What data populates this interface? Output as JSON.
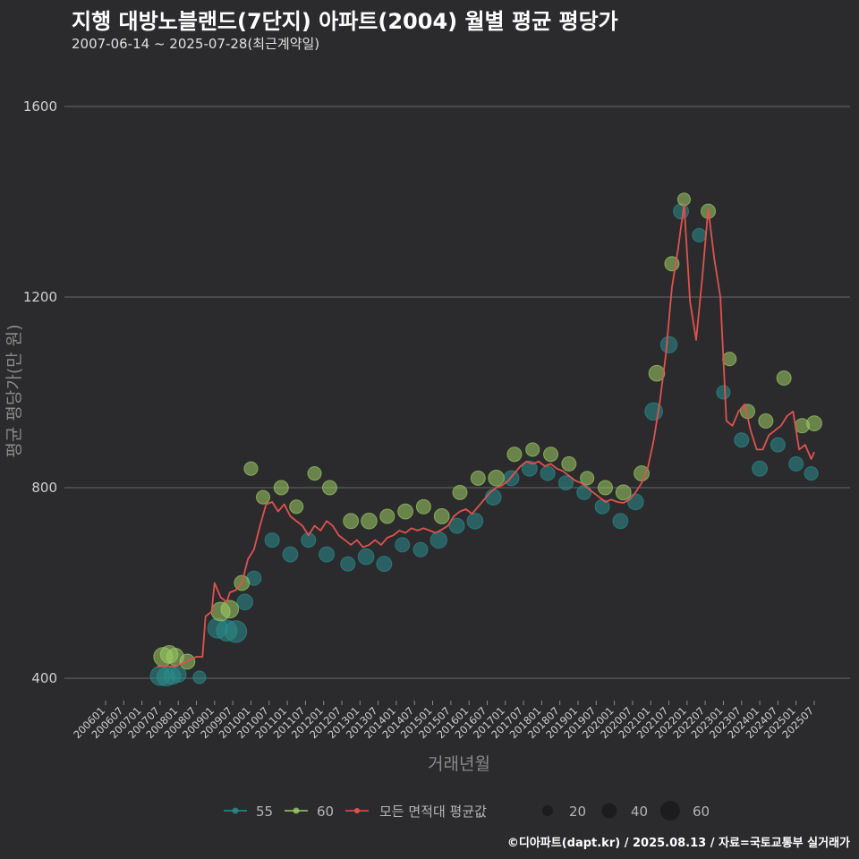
{
  "page": {
    "title": "지행 대방노블랜드(7단지) 아파트(2004) 월별 평균 평당가",
    "subtitle": "2007-06-14 ~ 2025-07-28(최근계약일)",
    "footer": "©디아파트(dapt.kr) / 2025.08.13 / 자료=국토교통부 실거래가"
  },
  "colors": {
    "background": "#2b2b2d",
    "grid": "#6a6a6a",
    "series_55": "#2a8c8c",
    "series_60": "#9ccc65",
    "avg_line": "#e0524f"
  },
  "chart_data": {
    "type": "line",
    "xlabel": "거래년월",
    "ylabel": "평균 평당가(만 원)",
    "ylim": [
      370,
      1670
    ],
    "y_ticks": [
      400,
      800,
      1200,
      1600
    ],
    "x_ticks": [
      "200601",
      "200607",
      "200701",
      "200707",
      "200801",
      "200807",
      "200901",
      "200907",
      "201001",
      "201007",
      "201101",
      "201107",
      "201201",
      "201207",
      "201301",
      "201307",
      "201401",
      "201407",
      "201501",
      "201507",
      "201601",
      "201607",
      "201701",
      "201707",
      "201801",
      "201807",
      "201901",
      "201907",
      "202001",
      "202007",
      "202101",
      "202107",
      "202201",
      "202207",
      "202301",
      "202307",
      "202401",
      "202407",
      "202501",
      "202507"
    ],
    "x_start": "2006-01",
    "x_end": "2025-07",
    "legend": {
      "series_label_55": "55",
      "series_label_60": "60",
      "avg_label": "모든 면적대 평균값",
      "size_labels": [
        "20",
        "40",
        "60"
      ]
    },
    "avg_line": [
      [
        "2007-06",
        425
      ],
      [
        "2007-09",
        425
      ],
      [
        "2007-12",
        425
      ],
      [
        "2008-02",
        430
      ],
      [
        "2008-05",
        440
      ],
      [
        "2008-07",
        445
      ],
      [
        "2008-09",
        445
      ],
      [
        "2008-10",
        530
      ],
      [
        "2008-12",
        540
      ],
      [
        "2009-01",
        600
      ],
      [
        "2009-03",
        570
      ],
      [
        "2009-05",
        560
      ],
      [
        "2009-06",
        580
      ],
      [
        "2009-08",
        585
      ],
      [
        "2009-10",
        600
      ],
      [
        "2009-12",
        650
      ],
      [
        "2010-02",
        670
      ],
      [
        "2010-04",
        720
      ],
      [
        "2010-06",
        765
      ],
      [
        "2010-08",
        770
      ],
      [
        "2010-10",
        750
      ],
      [
        "2010-12",
        765
      ],
      [
        "2011-02",
        740
      ],
      [
        "2011-04",
        730
      ],
      [
        "2011-06",
        720
      ],
      [
        "2011-08",
        700
      ],
      [
        "2011-10",
        720
      ],
      [
        "2011-12",
        710
      ],
      [
        "2012-02",
        730
      ],
      [
        "2012-04",
        720
      ],
      [
        "2012-06",
        700
      ],
      [
        "2012-08",
        690
      ],
      [
        "2012-10",
        680
      ],
      [
        "2012-12",
        690
      ],
      [
        "2013-02",
        675
      ],
      [
        "2013-04",
        680
      ],
      [
        "2013-06",
        690
      ],
      [
        "2013-08",
        680
      ],
      [
        "2013-10",
        695
      ],
      [
        "2013-12",
        700
      ],
      [
        "2014-02",
        710
      ],
      [
        "2014-04",
        705
      ],
      [
        "2014-06",
        715
      ],
      [
        "2014-08",
        710
      ],
      [
        "2014-10",
        715
      ],
      [
        "2014-12",
        710
      ],
      [
        "2015-02",
        705
      ],
      [
        "2015-04",
        712
      ],
      [
        "2015-06",
        720
      ],
      [
        "2015-08",
        740
      ],
      [
        "2015-10",
        750
      ],
      [
        "2015-12",
        755
      ],
      [
        "2016-02",
        745
      ],
      [
        "2016-04",
        760
      ],
      [
        "2016-06",
        775
      ],
      [
        "2016-08",
        790
      ],
      [
        "2016-10",
        800
      ],
      [
        "2016-12",
        805
      ],
      [
        "2017-02",
        815
      ],
      [
        "2017-04",
        830
      ],
      [
        "2017-06",
        845
      ],
      [
        "2017-08",
        855
      ],
      [
        "2017-10",
        850
      ],
      [
        "2017-12",
        855
      ],
      [
        "2018-02",
        845
      ],
      [
        "2018-04",
        850
      ],
      [
        "2018-06",
        840
      ],
      [
        "2018-08",
        835
      ],
      [
        "2018-10",
        825
      ],
      [
        "2018-12",
        815
      ],
      [
        "2019-02",
        810
      ],
      [
        "2019-04",
        800
      ],
      [
        "2019-06",
        790
      ],
      [
        "2019-08",
        780
      ],
      [
        "2019-10",
        770
      ],
      [
        "2019-12",
        775
      ],
      [
        "2020-02",
        770
      ],
      [
        "2020-04",
        768
      ],
      [
        "2020-06",
        775
      ],
      [
        "2020-08",
        790
      ],
      [
        "2020-10",
        810
      ],
      [
        "2020-12",
        840
      ],
      [
        "2021-02",
        900
      ],
      [
        "2021-04",
        980
      ],
      [
        "2021-06",
        1080
      ],
      [
        "2021-08",
        1220
      ],
      [
        "2021-10",
        1300
      ],
      [
        "2021-12",
        1395
      ],
      [
        "2022-02",
        1190
      ],
      [
        "2022-04",
        1110
      ],
      [
        "2022-06",
        1240
      ],
      [
        "2022-08",
        1385
      ],
      [
        "2022-10",
        1280
      ],
      [
        "2022-12",
        1200
      ],
      [
        "2023-02",
        940
      ],
      [
        "2023-04",
        930
      ],
      [
        "2023-06",
        960
      ],
      [
        "2023-08",
        975
      ],
      [
        "2023-10",
        920
      ],
      [
        "2023-12",
        880
      ],
      [
        "2024-02",
        880
      ],
      [
        "2024-04",
        910
      ],
      [
        "2024-06",
        920
      ],
      [
        "2024-08",
        930
      ],
      [
        "2024-10",
        950
      ],
      [
        "2024-12",
        960
      ],
      [
        "2025-02",
        880
      ],
      [
        "2025-04",
        890
      ],
      [
        "2025-06",
        860
      ],
      [
        "2025-07",
        875
      ]
    ],
    "series": [
      {
        "name": "55",
        "points": [
          [
            "2007-07",
            405,
            30
          ],
          [
            "2007-09",
            403,
            26
          ],
          [
            "2007-11",
            405,
            22
          ],
          [
            "2008-01",
            408,
            18
          ],
          [
            "2008-08",
            402,
            10
          ],
          [
            "2009-02",
            505,
            32
          ],
          [
            "2009-05",
            500,
            36
          ],
          [
            "2009-08",
            498,
            40
          ],
          [
            "2009-11",
            560,
            18
          ],
          [
            "2010-02",
            610,
            14
          ],
          [
            "2010-08",
            690,
            14
          ],
          [
            "2011-02",
            660,
            16
          ],
          [
            "2011-08",
            690,
            14
          ],
          [
            "2012-02",
            660,
            16
          ],
          [
            "2012-09",
            640,
            14
          ],
          [
            "2013-03",
            655,
            18
          ],
          [
            "2013-09",
            640,
            16
          ],
          [
            "2014-03",
            680,
            14
          ],
          [
            "2014-09",
            670,
            14
          ],
          [
            "2015-03",
            690,
            20
          ],
          [
            "2015-09",
            720,
            16
          ],
          [
            "2016-03",
            730,
            18
          ],
          [
            "2016-09",
            780,
            18
          ],
          [
            "2017-03",
            820,
            16
          ],
          [
            "2017-09",
            840,
            16
          ],
          [
            "2018-03",
            830,
            14
          ],
          [
            "2018-09",
            810,
            14
          ],
          [
            "2019-03",
            790,
            14
          ],
          [
            "2019-09",
            760,
            14
          ],
          [
            "2020-03",
            730,
            16
          ],
          [
            "2020-08",
            770,
            18
          ],
          [
            "2021-02",
            960,
            24
          ],
          [
            "2021-07",
            1100,
            20
          ],
          [
            "2021-11",
            1380,
            16
          ],
          [
            "2022-05",
            1330,
            12
          ],
          [
            "2023-01",
            1000,
            12
          ],
          [
            "2023-07",
            900,
            14
          ],
          [
            "2024-01",
            840,
            16
          ],
          [
            "2024-07",
            890,
            14
          ],
          [
            "2025-01",
            850,
            14
          ],
          [
            "2025-06",
            830,
            12
          ]
        ]
      },
      {
        "name": "60",
        "points": [
          [
            "2007-08",
            445,
            28
          ],
          [
            "2007-10",
            450,
            24
          ],
          [
            "2007-12",
            445,
            22
          ],
          [
            "2008-04",
            435,
            16
          ],
          [
            "2009-03",
            540,
            28
          ],
          [
            "2009-06",
            545,
            24
          ],
          [
            "2009-10",
            600,
            16
          ],
          [
            "2010-01",
            840,
            12
          ],
          [
            "2010-05",
            780,
            12
          ],
          [
            "2010-11",
            800,
            14
          ],
          [
            "2011-04",
            760,
            12
          ],
          [
            "2011-10",
            830,
            12
          ],
          [
            "2012-03",
            800,
            14
          ],
          [
            "2012-10",
            730,
            16
          ],
          [
            "2013-04",
            730,
            18
          ],
          [
            "2013-10",
            740,
            14
          ],
          [
            "2014-04",
            750,
            16
          ],
          [
            "2014-10",
            760,
            14
          ],
          [
            "2015-04",
            740,
            16
          ],
          [
            "2015-10",
            790,
            14
          ],
          [
            "2016-04",
            820,
            14
          ],
          [
            "2016-10",
            820,
            18
          ],
          [
            "2017-04",
            870,
            14
          ],
          [
            "2017-10",
            880,
            12
          ],
          [
            "2018-04",
            870,
            14
          ],
          [
            "2018-10",
            850,
            14
          ],
          [
            "2019-04",
            820,
            12
          ],
          [
            "2019-10",
            800,
            14
          ],
          [
            "2020-04",
            790,
            16
          ],
          [
            "2020-10",
            830,
            16
          ],
          [
            "2021-03",
            1040,
            18
          ],
          [
            "2021-08",
            1270,
            14
          ],
          [
            "2021-12",
            1405,
            10
          ],
          [
            "2022-08",
            1380,
            14
          ],
          [
            "2023-03",
            1070,
            12
          ],
          [
            "2023-09",
            960,
            14
          ],
          [
            "2024-03",
            940,
            14
          ],
          [
            "2024-09",
            1030,
            14
          ],
          [
            "2025-03",
            930,
            14
          ],
          [
            "2025-07",
            935,
            16
          ]
        ]
      }
    ]
  }
}
